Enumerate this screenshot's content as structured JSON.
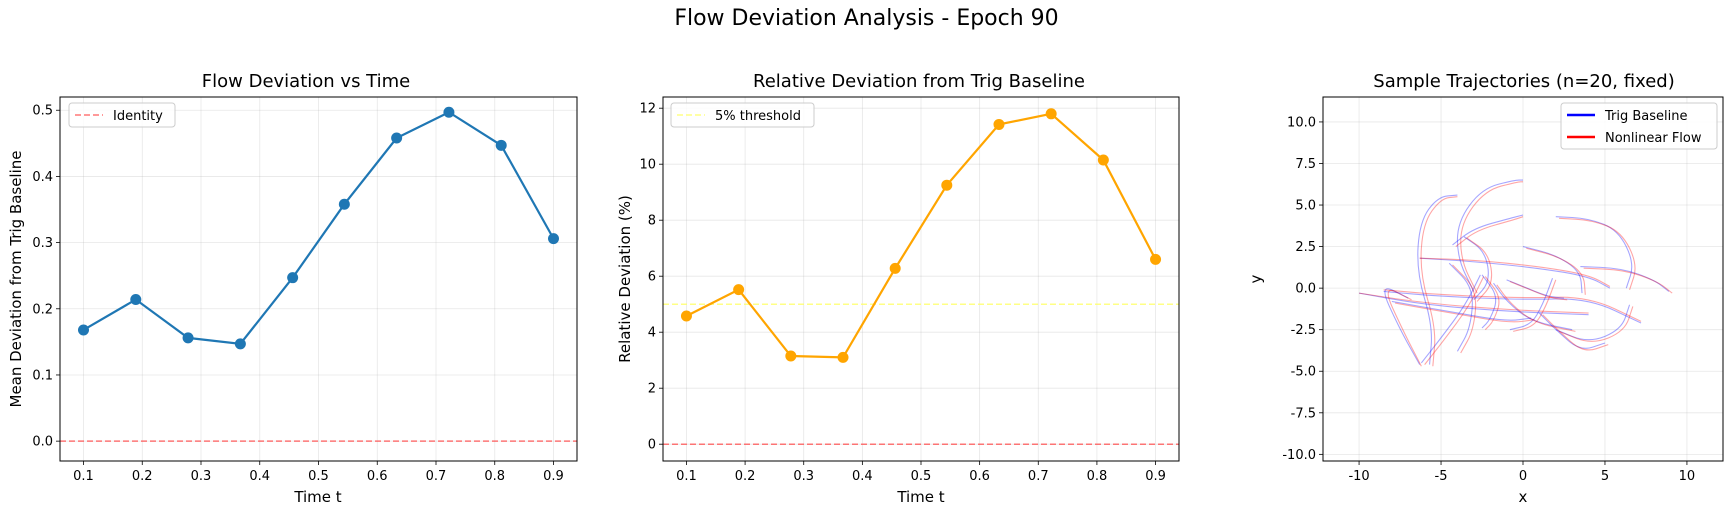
{
  "suptitle": "Flow Deviation Analysis - Epoch 90",
  "colors": {
    "blue": "#1f77b4",
    "orange": "#ffa500",
    "red_dashed": "#ff5555",
    "yellow_dashed": "#ffff66",
    "trig": "#0000ff",
    "nonlinear": "#ff0000"
  },
  "chart_data": [
    {
      "type": "line",
      "title": "Flow Deviation vs Time",
      "xlabel": "Time t",
      "ylabel": "Mean Deviation from Trig Baseline",
      "xlim": [
        0.06,
        0.94
      ],
      "ylim": [
        -0.03,
        0.52
      ],
      "xticks": [
        0.1,
        0.2,
        0.3,
        0.4,
        0.5,
        0.6,
        0.7,
        0.8,
        0.9
      ],
      "yticks": [
        0.0,
        0.1,
        0.2,
        0.3,
        0.4,
        0.5
      ],
      "x": [
        0.1,
        0.189,
        0.278,
        0.367,
        0.456,
        0.544,
        0.633,
        0.722,
        0.811,
        0.9
      ],
      "series": [
        {
          "values": [
            0.168,
            0.214,
            0.156,
            0.147,
            0.247,
            0.358,
            0.458,
            0.497,
            0.447,
            0.306
          ],
          "color": "#1f77b4"
        }
      ],
      "hlines": [
        {
          "y": 0,
          "color": "#ff5555",
          "name": "Identity",
          "show_in_legend": true
        }
      ],
      "legend": "upper-left",
      "grid": true
    },
    {
      "type": "line",
      "title": "Relative Deviation from Trig Baseline",
      "xlabel": "Time t",
      "ylabel": "Relative Deviation (%)",
      "xlim": [
        0.06,
        0.94
      ],
      "ylim": [
        -0.6,
        12.4
      ],
      "xticks": [
        0.1,
        0.2,
        0.3,
        0.4,
        0.5,
        0.6,
        0.7,
        0.8,
        0.9
      ],
      "yticks": [
        0,
        2,
        4,
        6,
        8,
        10,
        12
      ],
      "x": [
        0.1,
        0.189,
        0.278,
        0.367,
        0.456,
        0.544,
        0.633,
        0.722,
        0.811,
        0.9
      ],
      "series": [
        {
          "values": [
            4.58,
            5.52,
            3.15,
            3.1,
            6.28,
            9.25,
            11.42,
            11.8,
            10.15,
            6.6
          ],
          "color": "#ffa500"
        }
      ],
      "hlines": [
        {
          "y": 5,
          "color": "#ffff66",
          "name": "5% threshold",
          "show_in_legend": true
        },
        {
          "y": 0,
          "color": "#ff5555",
          "name": "",
          "show_in_legend": false
        }
      ],
      "legend": "upper-left",
      "grid": true
    },
    {
      "type": "line",
      "title": "Sample Trajectories (n=20, fixed)",
      "xlabel": "x",
      "ylabel": "y",
      "xlim": [
        -12.2,
        12.2
      ],
      "ylim": [
        -10.4,
        11.5
      ],
      "xticks": [
        -10,
        -5,
        0,
        5,
        10
      ],
      "yticks": [
        -10.0,
        -7.5,
        -5.0,
        -2.5,
        0.0,
        2.5,
        5.0,
        7.5,
        10.0
      ],
      "legend": "upper-right",
      "grid": true,
      "series": [
        {
          "name": "Trig Baseline",
          "color": "#0000ff"
        },
        {
          "name": "Nonlinear Flow",
          "color": "#ff0000"
        }
      ],
      "trajectories": [
        {
          "trig": [
            [
              -10,
              -0.3
            ],
            [
              -6,
              -1.0
            ],
            [
              -1,
              -1.4
            ],
            [
              4,
              -1.6
            ]
          ],
          "flow": [
            [
              -10,
              -0.3
            ],
            [
              -6,
              -0.9
            ],
            [
              -1,
              -1.3
            ],
            [
              4,
              -1.5
            ]
          ]
        },
        {
          "trig": [
            [
              -6.3,
              1.8
            ],
            [
              -3,
              1.6
            ],
            [
              1,
              1.2
            ],
            [
              4,
              0.7
            ],
            [
              5.3,
              0.0
            ]
          ],
          "flow": [
            [
              -6.3,
              1.8
            ],
            [
              -3,
              1.7
            ],
            [
              1,
              1.3
            ],
            [
              4,
              0.8
            ],
            [
              5.3,
              0.1
            ]
          ]
        },
        {
          "trig": [
            [
              -8.5,
              -0.2
            ],
            [
              -5,
              -0.5
            ],
            [
              0,
              -0.7
            ],
            [
              4,
              -0.6
            ],
            [
              7.2,
              -2.1
            ]
          ],
          "flow": [
            [
              -8.5,
              -0.1
            ],
            [
              -5,
              -0.4
            ],
            [
              0,
              -0.6
            ],
            [
              4,
              -0.5
            ],
            [
              7.2,
              -2.0
            ]
          ]
        },
        {
          "trig": [
            [
              -6.3,
              -4.6
            ],
            [
              -7.5,
              -2.5
            ],
            [
              -8.8,
              0.3
            ],
            [
              -7,
              -0.6
            ]
          ],
          "flow": [
            [
              -6.2,
              -4.7
            ],
            [
              -7.3,
              -2.6
            ],
            [
              -8.6,
              0.2
            ],
            [
              -6.8,
              -0.7
            ]
          ]
        },
        {
          "trig": [
            [
              -6.2,
              -4.5
            ],
            [
              -5.0,
              -3.0
            ],
            [
              -3.5,
              -1.0
            ],
            [
              -2.6,
              0.8
            ]
          ],
          "flow": [
            [
              -6.0,
              -4.6
            ],
            [
              -4.8,
              -3.1
            ],
            [
              -3.3,
              -1.1
            ],
            [
              -2.4,
              0.7
            ]
          ]
        },
        {
          "trig": [
            [
              -5.7,
              -4.6
            ],
            [
              -5.5,
              -2.3
            ],
            [
              -6.5,
              1.0
            ],
            [
              -6.3,
              4.0
            ],
            [
              -5.2,
              5.5
            ],
            [
              -4,
              5.6
            ]
          ],
          "flow": [
            [
              -5.5,
              -4.7
            ],
            [
              -5.3,
              -2.4
            ],
            [
              -6.3,
              0.9
            ],
            [
              -6.1,
              3.9
            ],
            [
              -5.0,
              5.4
            ],
            [
              -4,
              5.5
            ]
          ]
        },
        {
          "trig": [
            [
              -3.0,
              -0.2
            ],
            [
              -4.0,
              1.8
            ],
            [
              -4.0,
              4.0
            ],
            [
              -2.5,
              6.0
            ],
            [
              -0.5,
              6.5
            ],
            [
              0,
              6.5
            ]
          ],
          "flow": [
            [
              -2.8,
              -0.3
            ],
            [
              -3.8,
              1.7
            ],
            [
              -3.8,
              3.9
            ],
            [
              -2.3,
              5.9
            ],
            [
              -0.3,
              6.4
            ],
            [
              0,
              6.4
            ]
          ]
        },
        {
          "trig": [
            [
              -4.3,
              2.6
            ],
            [
              -3,
              3.6
            ],
            [
              -0.8,
              4.2
            ],
            [
              0,
              4.4
            ]
          ],
          "flow": [
            [
              -4.1,
              2.5
            ],
            [
              -2.8,
              3.5
            ],
            [
              -0.6,
              4.1
            ],
            [
              0,
              4.3
            ]
          ]
        },
        {
          "trig": [
            [
              -3.6,
              3.1
            ],
            [
              -2.3,
              2.2
            ],
            [
              -2.0,
              0.4
            ],
            [
              -3.0,
              -0.7
            ]
          ],
          "flow": [
            [
              -3.4,
              3.0
            ],
            [
              -2.1,
              2.1
            ],
            [
              -1.8,
              0.3
            ],
            [
              -2.8,
              -0.8
            ]
          ]
        },
        {
          "trig": [
            [
              -4.5,
              1.5
            ],
            [
              -3.0,
              0.0
            ],
            [
              -3.2,
              -2.4
            ],
            [
              -4.0,
              -3.8
            ]
          ],
          "flow": [
            [
              -4.3,
              1.4
            ],
            [
              -2.8,
              -0.1
            ],
            [
              -3.0,
              -2.5
            ],
            [
              -3.8,
              -3.9
            ]
          ]
        },
        {
          "trig": [
            [
              -2.5,
              0.8
            ],
            [
              -1.5,
              -0.5
            ],
            [
              -2.0,
              -1.9
            ],
            [
              -2.5,
              -2.4
            ]
          ],
          "flow": [
            [
              -2.3,
              0.7
            ],
            [
              -1.3,
              -0.6
            ],
            [
              -1.8,
              -2.0
            ],
            [
              -2.3,
              -2.5
            ]
          ]
        },
        {
          "trig": [
            [
              -1.0,
              0.5
            ],
            [
              0,
              0.1
            ],
            [
              1.5,
              -0.5
            ],
            [
              2.5,
              -0.6
            ]
          ],
          "flow": [
            [
              -0.8,
              0.4
            ],
            [
              0.2,
              0.0
            ],
            [
              1.7,
              -0.6
            ],
            [
              2.7,
              -0.7
            ]
          ]
        },
        {
          "trig": [
            [
              -1.8,
              0.3
            ],
            [
              -1.0,
              -0.8
            ],
            [
              0.5,
              -2.0
            ],
            [
              3.0,
              -2.5
            ]
          ],
          "flow": [
            [
              -1.6,
              0.2
            ],
            [
              -0.8,
              -0.9
            ],
            [
              0.7,
              -2.1
            ],
            [
              3.2,
              -2.6
            ]
          ]
        },
        {
          "trig": [
            [
              0,
              2.5
            ],
            [
              2,
              2.0
            ],
            [
              3.5,
              1.0
            ],
            [
              3.6,
              -0.3
            ]
          ],
          "flow": [
            [
              0.2,
              2.4
            ],
            [
              2.2,
              1.9
            ],
            [
              3.7,
              0.9
            ],
            [
              3.8,
              -0.4
            ]
          ]
        },
        {
          "trig": [
            [
              1.8,
              0.6
            ],
            [
              1.2,
              -1.0
            ],
            [
              0.5,
              -2.2
            ],
            [
              -0.8,
              -2.5
            ]
          ],
          "flow": [
            [
              2.0,
              0.5
            ],
            [
              1.4,
              -1.1
            ],
            [
              0.7,
              -2.3
            ],
            [
              -0.6,
              -2.6
            ]
          ]
        },
        {
          "trig": [
            [
              2.0,
              4.3
            ],
            [
              4,
              4.2
            ],
            [
              5.8,
              3.5
            ],
            [
              6.8,
              1.5
            ],
            [
              6.3,
              0.0
            ]
          ],
          "flow": [
            [
              2.2,
              4.2
            ],
            [
              4.2,
              4.1
            ],
            [
              6.0,
              3.4
            ],
            [
              7.0,
              1.4
            ],
            [
              6.5,
              -0.1
            ]
          ]
        },
        {
          "trig": [
            [
              2.0,
              -2.5
            ],
            [
              4,
              -3.3
            ],
            [
              6,
              -2.5
            ],
            [
              6.5,
              -1.0
            ]
          ],
          "flow": [
            [
              2.2,
              -2.6
            ],
            [
              4.2,
              -3.4
            ],
            [
              6.2,
              -2.6
            ],
            [
              6.7,
              -1.1
            ]
          ]
        },
        {
          "trig": [
            [
              1.0,
              -1.5
            ],
            [
              2,
              -2.5
            ],
            [
              3.5,
              -3.8
            ],
            [
              5,
              -3.3
            ]
          ],
          "flow": [
            [
              1.2,
              -1.6
            ],
            [
              2.2,
              -2.6
            ],
            [
              3.7,
              -3.9
            ],
            [
              5.2,
              -3.4
            ]
          ]
        },
        {
          "trig": [
            [
              3.5,
              1.3
            ],
            [
              6,
              1.2
            ],
            [
              8,
              0.5
            ],
            [
              8.9,
              -0.2
            ]
          ],
          "flow": [
            [
              3.7,
              1.2
            ],
            [
              6.2,
              1.1
            ],
            [
              8.2,
              0.4
            ],
            [
              9.1,
              -0.3
            ]
          ]
        },
        {
          "trig": [
            [
              -8,
              -0.8
            ],
            [
              -4,
              -1.5
            ],
            [
              -1,
              -2.0
            ],
            [
              0.5,
              -1.8
            ]
          ],
          "flow": [
            [
              -7.8,
              -0.9
            ],
            [
              -3.8,
              -1.6
            ],
            [
              -0.8,
              -2.1
            ],
            [
              0.7,
              -1.9
            ]
          ]
        }
      ]
    }
  ]
}
